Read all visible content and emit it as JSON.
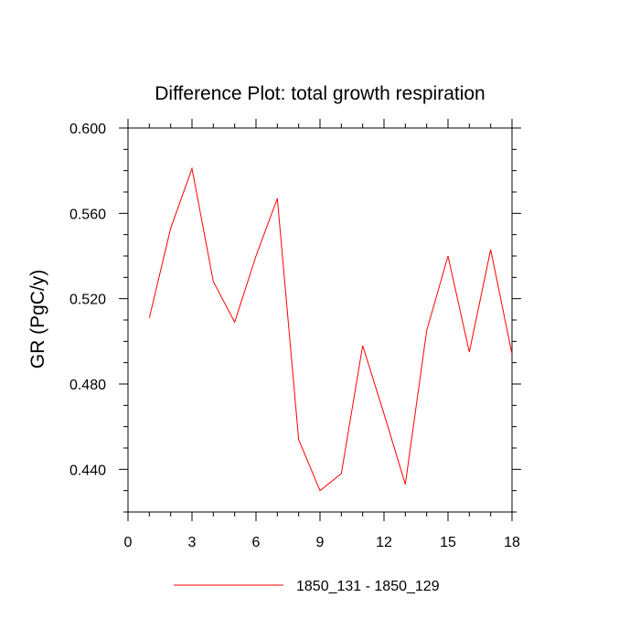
{
  "chart_data": {
    "type": "line",
    "title": "Difference Plot: total growth respiration",
    "xlabel": "",
    "ylabel": "GR  (PgC/y)",
    "xlim": [
      0,
      18
    ],
    "ylim": [
      0.42,
      0.6
    ],
    "xticks": [
      0,
      3,
      6,
      9,
      12,
      15,
      18
    ],
    "yticks": [
      0.44,
      0.48,
      0.52,
      0.56,
      0.6
    ],
    "ytick_labels": [
      "0.440",
      "0.480",
      "0.520",
      "0.560",
      "0.600"
    ],
    "xtick_labels": [
      "0",
      "3",
      "6",
      "9",
      "12",
      "15",
      "18"
    ],
    "grid": false,
    "legend_position": "bottom",
    "series": [
      {
        "name": "1850_131 - 1850_129",
        "color": "#ff0000",
        "x": [
          1,
          2,
          3,
          4,
          5,
          6,
          7,
          8,
          9,
          10,
          11,
          12,
          13,
          14,
          15,
          16,
          17,
          18
        ],
        "y": [
          0.511,
          0.553,
          0.581,
          0.528,
          0.509,
          0.54,
          0.567,
          0.454,
          0.43,
          0.438,
          0.498,
          0.466,
          0.433,
          0.505,
          0.54,
          0.495,
          0.543,
          0.494
        ]
      }
    ]
  }
}
